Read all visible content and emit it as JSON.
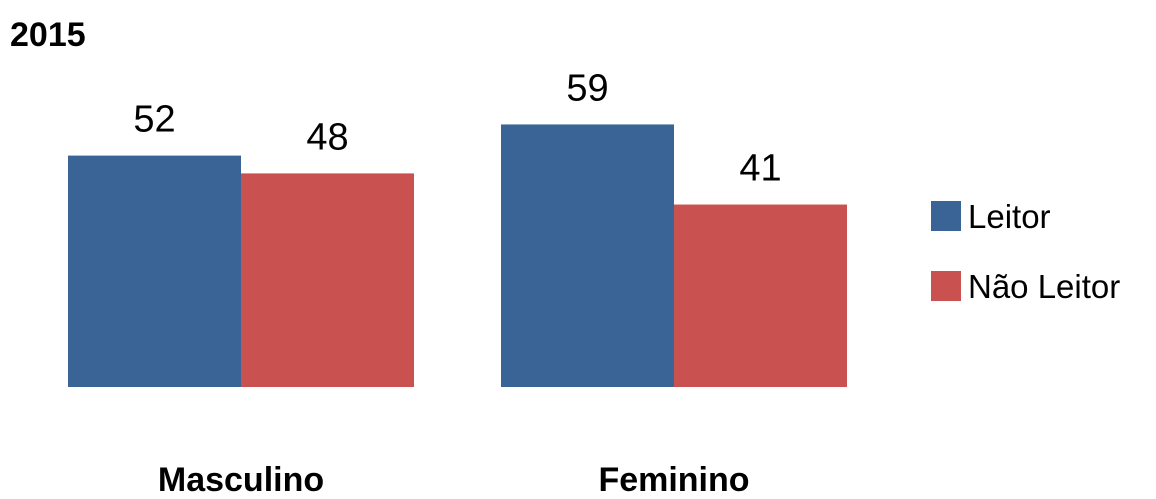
{
  "chart_data": {
    "type": "bar",
    "title": "2015",
    "categories": [
      "Masculino",
      "Feminino"
    ],
    "series": [
      {
        "name": "Leitor",
        "values": [
          52,
          59
        ],
        "color": "#3a6496"
      },
      {
        "name": "Não Leitor",
        "values": [
          48,
          41
        ],
        "color": "#c9514f"
      }
    ],
    "ylim": [
      0,
      70
    ],
    "grid": false,
    "legend_position": "right"
  }
}
